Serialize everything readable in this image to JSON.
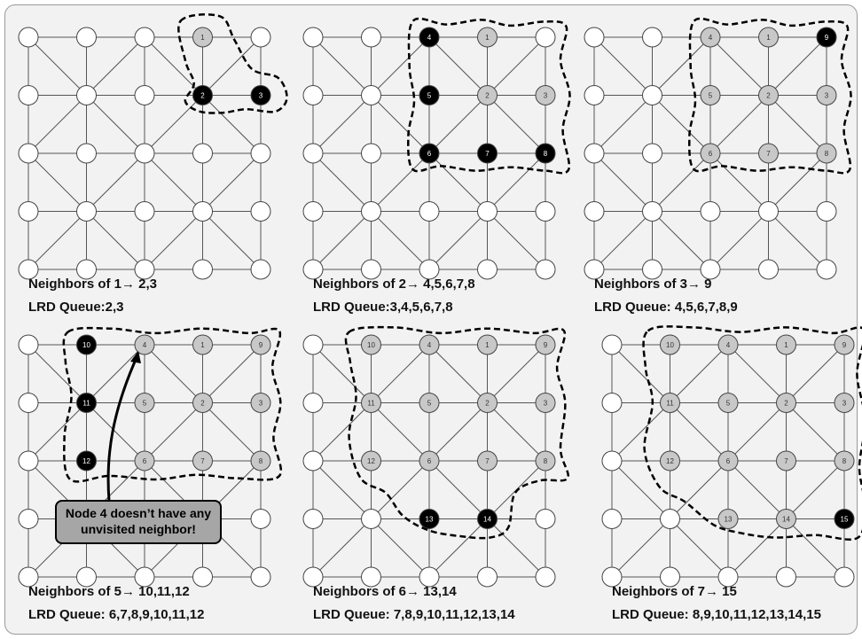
{
  "colors": {
    "unvisited_fill": "#ffffff",
    "visited_fill": "#c8c8c8",
    "frontier_fill": "#000000",
    "edge": "#555555",
    "boundary": "#000000",
    "callout_fill": "#a6a6a6"
  },
  "panels": [
    {
      "caption": "Neighbors of 1→ 2,3",
      "queue": "LRD Queue:2,3",
      "visited": [
        [
          3,
          0,
          "1"
        ]
      ],
      "frontier": [
        [
          3,
          1,
          "2"
        ],
        [
          4,
          1,
          "3"
        ]
      ],
      "blob": "1-2"
    },
    {
      "caption": "Neighbors of 2→ 4,5,6,7,8",
      "queue": "LRD Queue:3,4,5,6,7,8",
      "visited": [
        [
          3,
          0,
          "1"
        ],
        [
          3,
          1,
          "2"
        ],
        [
          4,
          1,
          "3"
        ]
      ],
      "frontier": [
        [
          2,
          0,
          "4"
        ],
        [
          2,
          1,
          "5"
        ],
        [
          2,
          2,
          "6"
        ],
        [
          3,
          2,
          "7"
        ],
        [
          4,
          2,
          "8"
        ]
      ],
      "blob": "2-8"
    },
    {
      "caption": "Neighbors of 3→ 9",
      "queue": "LRD Queue: 4,5,6,7,8,9",
      "visited": [
        [
          3,
          0,
          "1"
        ],
        [
          3,
          1,
          "2"
        ],
        [
          4,
          1,
          "3"
        ],
        [
          2,
          0,
          "4"
        ],
        [
          2,
          1,
          "5"
        ],
        [
          2,
          2,
          "6"
        ],
        [
          3,
          2,
          "7"
        ],
        [
          4,
          2,
          "8"
        ]
      ],
      "frontier": [
        [
          4,
          0,
          "9"
        ]
      ],
      "blob": "2-8"
    },
    {
      "caption": "Neighbors of 5→ 10,11,12",
      "queue": "LRD Queue: 6,7,8,9,10,11,12",
      "visited": [
        [
          3,
          0,
          "1"
        ],
        [
          3,
          1,
          "2"
        ],
        [
          4,
          1,
          "3"
        ],
        [
          2,
          0,
          "4"
        ],
        [
          2,
          1,
          "5"
        ],
        [
          2,
          2,
          "6"
        ],
        [
          3,
          2,
          "7"
        ],
        [
          4,
          2,
          "8"
        ],
        [
          4,
          0,
          "9"
        ]
      ],
      "frontier": [
        [
          1,
          0,
          "10"
        ],
        [
          1,
          1,
          "11"
        ],
        [
          1,
          2,
          "12"
        ]
      ],
      "blob": "1-8",
      "callout": "Node 4 doesn’t have any unvisited neighbor!"
    },
    {
      "caption": "Neighbors of 6→ 13,14",
      "queue": "LRD Queue: 7,8,9,10,11,12,13,14",
      "visited": [
        [
          3,
          0,
          "1"
        ],
        [
          3,
          1,
          "2"
        ],
        [
          4,
          1,
          "3"
        ],
        [
          2,
          0,
          "4"
        ],
        [
          2,
          1,
          "5"
        ],
        [
          2,
          2,
          "6"
        ],
        [
          3,
          2,
          "7"
        ],
        [
          4,
          2,
          "8"
        ],
        [
          4,
          0,
          "9"
        ],
        [
          1,
          0,
          "10"
        ],
        [
          1,
          1,
          "11"
        ],
        [
          1,
          2,
          "12"
        ]
      ],
      "frontier": [
        [
          2,
          3,
          "13"
        ],
        [
          3,
          3,
          "14"
        ]
      ],
      "blob": "big-a"
    },
    {
      "caption": "Neighbors of 7→ 15",
      "queue": "LRD Queue: 8,9,10,11,12,13,14,15",
      "visited": [
        [
          3,
          0,
          "1"
        ],
        [
          3,
          1,
          "2"
        ],
        [
          4,
          1,
          "3"
        ],
        [
          2,
          0,
          "4"
        ],
        [
          2,
          1,
          "5"
        ],
        [
          2,
          2,
          "6"
        ],
        [
          3,
          2,
          "7"
        ],
        [
          4,
          2,
          "8"
        ],
        [
          4,
          0,
          "9"
        ],
        [
          1,
          0,
          "10"
        ],
        [
          1,
          1,
          "11"
        ],
        [
          1,
          2,
          "12"
        ],
        [
          2,
          3,
          "13"
        ],
        [
          3,
          3,
          "14"
        ]
      ],
      "frontier": [
        [
          4,
          3,
          "15"
        ]
      ],
      "blob": "big-b"
    }
  ]
}
